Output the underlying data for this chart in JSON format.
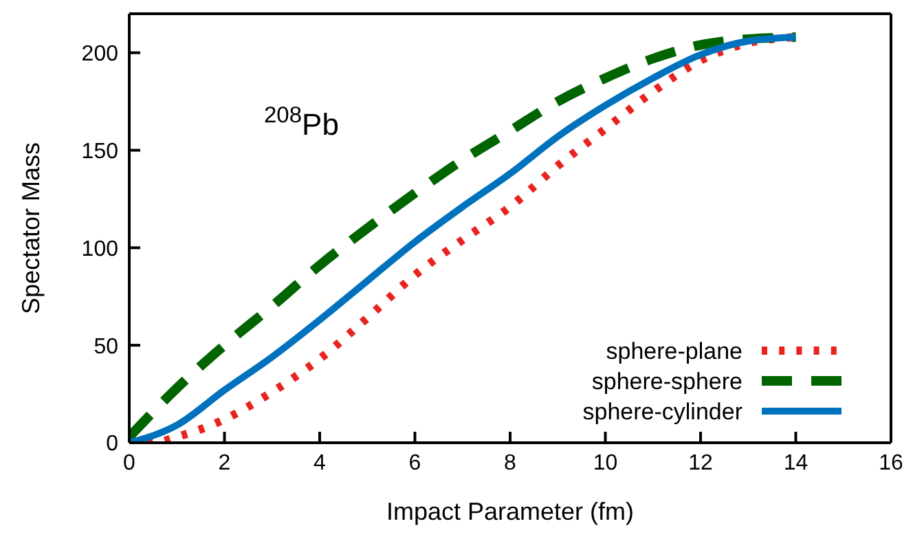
{
  "chart_data": {
    "type": "line",
    "xlabel": "Impact Parameter (fm)",
    "ylabel": "Spectator Mass",
    "annotations": [
      "$^{208}$Pb"
    ],
    "xlim": [
      0,
      16
    ],
    "xticks": [
      0,
      2,
      4,
      6,
      8,
      10,
      12,
      14,
      16
    ],
    "ylim": [
      0,
      220
    ],
    "yticks": [
      0,
      50,
      100,
      150,
      200
    ],
    "grid": false,
    "legend": "bottom right",
    "marker": "none",
    "series": [
      {
        "name": "sphere-plane",
        "color": "#e8231f",
        "line_style": "dotted",
        "x": [
          0,
          0.5,
          1,
          2,
          3,
          4,
          5,
          6,
          7,
          8,
          9,
          10,
          11,
          12,
          13,
          14
        ],
        "values": [
          0,
          0,
          3,
          12,
          26,
          43,
          64,
          86,
          104,
          121,
          142,
          161,
          180,
          196,
          205,
          208
        ]
      },
      {
        "name": "sphere-sphere",
        "color": "#006400",
        "line_style": "dashed",
        "x": [
          0,
          1,
          2,
          3,
          4,
          5,
          6,
          7,
          8,
          9,
          10,
          11,
          12,
          13,
          14
        ],
        "values": [
          3,
          28,
          50,
          70,
          91,
          110,
          128,
          145,
          160,
          175,
          187,
          197,
          204,
          207,
          208
        ]
      },
      {
        "name": "sphere-cylinder",
        "color": "#0072bd",
        "line_style": "solid",
        "x": [
          0,
          1,
          2,
          3,
          4,
          5,
          6,
          7,
          8,
          9,
          10,
          11,
          12,
          13,
          14
        ],
        "values": [
          0,
          9,
          27,
          44,
          63,
          83,
          103,
          121,
          138,
          157,
          173,
          187,
          199,
          206,
          208
        ]
      }
    ]
  }
}
